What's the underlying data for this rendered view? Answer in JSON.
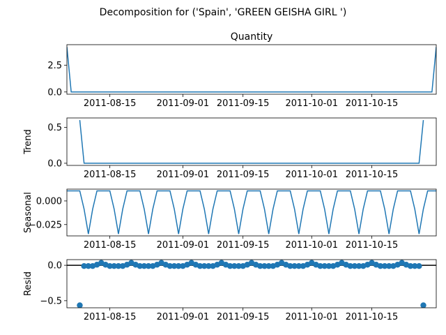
{
  "figure": {
    "suptitle": "Decomposition for ('Spain', 'GREEN GEISHA GIRL ')"
  },
  "chart_data": [
    {
      "type": "line",
      "title": "Quantity",
      "ylabel": "",
      "x_range": [
        "2011-08-05",
        "2011-10-30"
      ],
      "xticks": [
        "2011-08-15",
        "2011-09-01",
        "2011-09-15",
        "2011-10-01",
        "2011-10-15"
      ],
      "yticks": [
        0.0,
        2.5
      ],
      "ytick_labels": [
        "0.0",
        "2.5"
      ],
      "ylim": [
        -0.21,
        4.41
      ],
      "series_color": "#1f77b4",
      "series": [
        {
          "x": [
            "2011-08-05",
            "2011-08-06",
            "2011-10-29",
            "2011-10-30"
          ],
          "y": [
            4.2,
            0.0,
            0.0,
            4.2
          ]
        }
      ]
    },
    {
      "type": "line",
      "title": "",
      "ylabel": "Trend",
      "x_range": [
        "2011-08-05",
        "2011-10-30"
      ],
      "xticks": [
        "2011-08-15",
        "2011-09-01",
        "2011-09-15",
        "2011-10-01",
        "2011-10-15"
      ],
      "yticks": [
        0.0,
        0.5
      ],
      "ytick_labels": [
        "0.0",
        "0.5"
      ],
      "ylim": [
        -0.03,
        0.63
      ],
      "series_color": "#1f77b4",
      "series": [
        {
          "x": [
            "2011-08-08",
            "2011-08-09",
            "2011-10-26",
            "2011-10-27"
          ],
          "y": [
            0.6,
            0.0,
            0.0,
            0.6
          ]
        }
      ]
    },
    {
      "type": "line",
      "title": "",
      "ylabel": "Seasonal",
      "x_range": [
        "2011-08-05",
        "2011-10-30"
      ],
      "xticks": [
        "2011-08-15",
        "2011-09-01",
        "2011-09-15",
        "2011-10-01",
        "2011-10-15"
      ],
      "yticks": [
        0.0,
        -0.025
      ],
      "ytick_labels": [
        "0.000",
        "−0.025"
      ],
      "ylim": [
        -0.037,
        0.0125
      ],
      "series_color": "#1f77b4",
      "pattern_values": [
        0.0107,
        0.0107,
        0.0107,
        0.0107,
        -0.0086,
        -0.035,
        -0.0086
      ],
      "series": []
    },
    {
      "type": "scatter",
      "title": "",
      "ylabel": "Resid",
      "x_range": [
        "2011-08-05",
        "2011-10-30"
      ],
      "xticks": [
        "2011-08-15",
        "2011-09-01",
        "2011-09-15",
        "2011-10-01",
        "2011-10-15"
      ],
      "yticks": [
        0.0,
        -0.5
      ],
      "ytick_labels": [
        "0.0",
        "−0.5"
      ],
      "ylim": [
        -0.6,
        0.08
      ],
      "series_color": "#1f77b4",
      "zero_line": true,
      "start": "2011-08-08",
      "end": "2011-10-27",
      "endpoint_value": -0.565,
      "pattern_values": [
        -0.0107,
        -0.0107,
        -0.0107,
        -0.0107,
        0.0086,
        0.035,
        0.0086
      ],
      "series": []
    }
  ]
}
